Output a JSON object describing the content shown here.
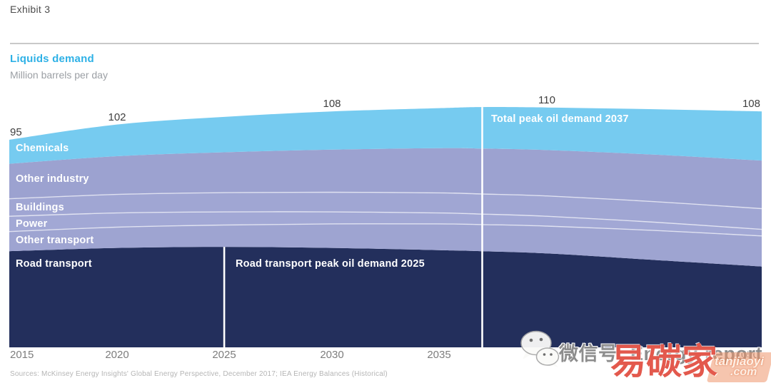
{
  "header": {
    "exhibit": "Exhibit 3",
    "title": "Liquids demand",
    "subtitle": "Million barrels per day"
  },
  "chart_data": {
    "type": "area",
    "stacked": true,
    "title": "Liquids demand",
    "units": "Million barrels per day",
    "x": [
      2015,
      2020,
      2025,
      2030,
      2035,
      2037,
      2040,
      2045,
      2050
    ],
    "x_ticks": [
      2015,
      2020,
      2025,
      2030,
      2035,
      2050
    ],
    "ylim": [
      0,
      120
    ],
    "grid": false,
    "legend": "inline-band-labels",
    "series": [
      {
        "name": "road-transport",
        "label": "Road transport",
        "color": "#232f5c",
        "values": [
          44.0,
          45.5,
          46.0,
          45.5,
          44.5,
          44.0,
          43.0,
          40.0,
          37.0
        ]
      },
      {
        "name": "other-transport",
        "label": "Other transport",
        "color": "#9ea4d1",
        "values": [
          9.0,
          9.5,
          10.0,
          11.0,
          12.0,
          12.2,
          12.5,
          13.5,
          14.0
        ]
      },
      {
        "name": "power",
        "label": "Power",
        "color": "#a2a8d5",
        "values": [
          7.0,
          6.5,
          6.0,
          5.5,
          5.0,
          4.8,
          4.5,
          3.8,
          3.0
        ]
      },
      {
        "name": "buildings",
        "label": "Buildings",
        "color": "#a0a6d3",
        "values": [
          8.0,
          8.5,
          8.8,
          9.0,
          9.2,
          9.2,
          9.3,
          9.4,
          9.5
        ]
      },
      {
        "name": "other-industry",
        "label": "Other industry",
        "color": "#9ca2d0",
        "values": [
          16.0,
          17.5,
          18.5,
          19.5,
          20.5,
          20.8,
          21.0,
          21.5,
          22.0
        ]
      },
      {
        "name": "chemicals",
        "label": "Chemicals",
        "color": "#76cbf0",
        "values": [
          11.0,
          14.5,
          16.2,
          17.5,
          18.3,
          19.0,
          19.5,
          20.8,
          22.5
        ]
      }
    ],
    "separators_above_series": [
      1,
      2,
      3
    ],
    "point_labels": [
      {
        "year": 2015,
        "value": 95
      },
      {
        "year": 2020,
        "value": 102
      },
      {
        "year": 2030,
        "value": 108
      },
      {
        "year": 2040,
        "value": 110
      },
      {
        "year": 2050,
        "value": 108
      }
    ],
    "annotations": [
      {
        "text": "Road transport peak oil demand 2025",
        "year": 2025,
        "line_from": "road-transport"
      },
      {
        "text": "Total peak oil demand 2037",
        "year": 2037,
        "line_from": "total"
      }
    ],
    "annotation_line_color": "#ffffff",
    "separator_line_color": "#ffffff"
  },
  "footer": {
    "sources": "Sources: McKinsey Energy Insights' Global Energy Perspective, December 2017; IEA Energy Balances (Historical)"
  },
  "watermark": {
    "wechat_icon": "wechat-logo",
    "wechat_label": "微信号: Energy-report",
    "site_name": "易碳家",
    "site_url_line1": "tanjiaoyi",
    "site_url_line2": ".com"
  },
  "colors": {
    "title_accent": "#2eb1e6",
    "value_label": "#3f3f3f",
    "axis_label": "#7d7d7d",
    "divider": "#c9c9c9",
    "watermark_gray": "#8d8d8d",
    "watermark_red": "#dd3526"
  }
}
